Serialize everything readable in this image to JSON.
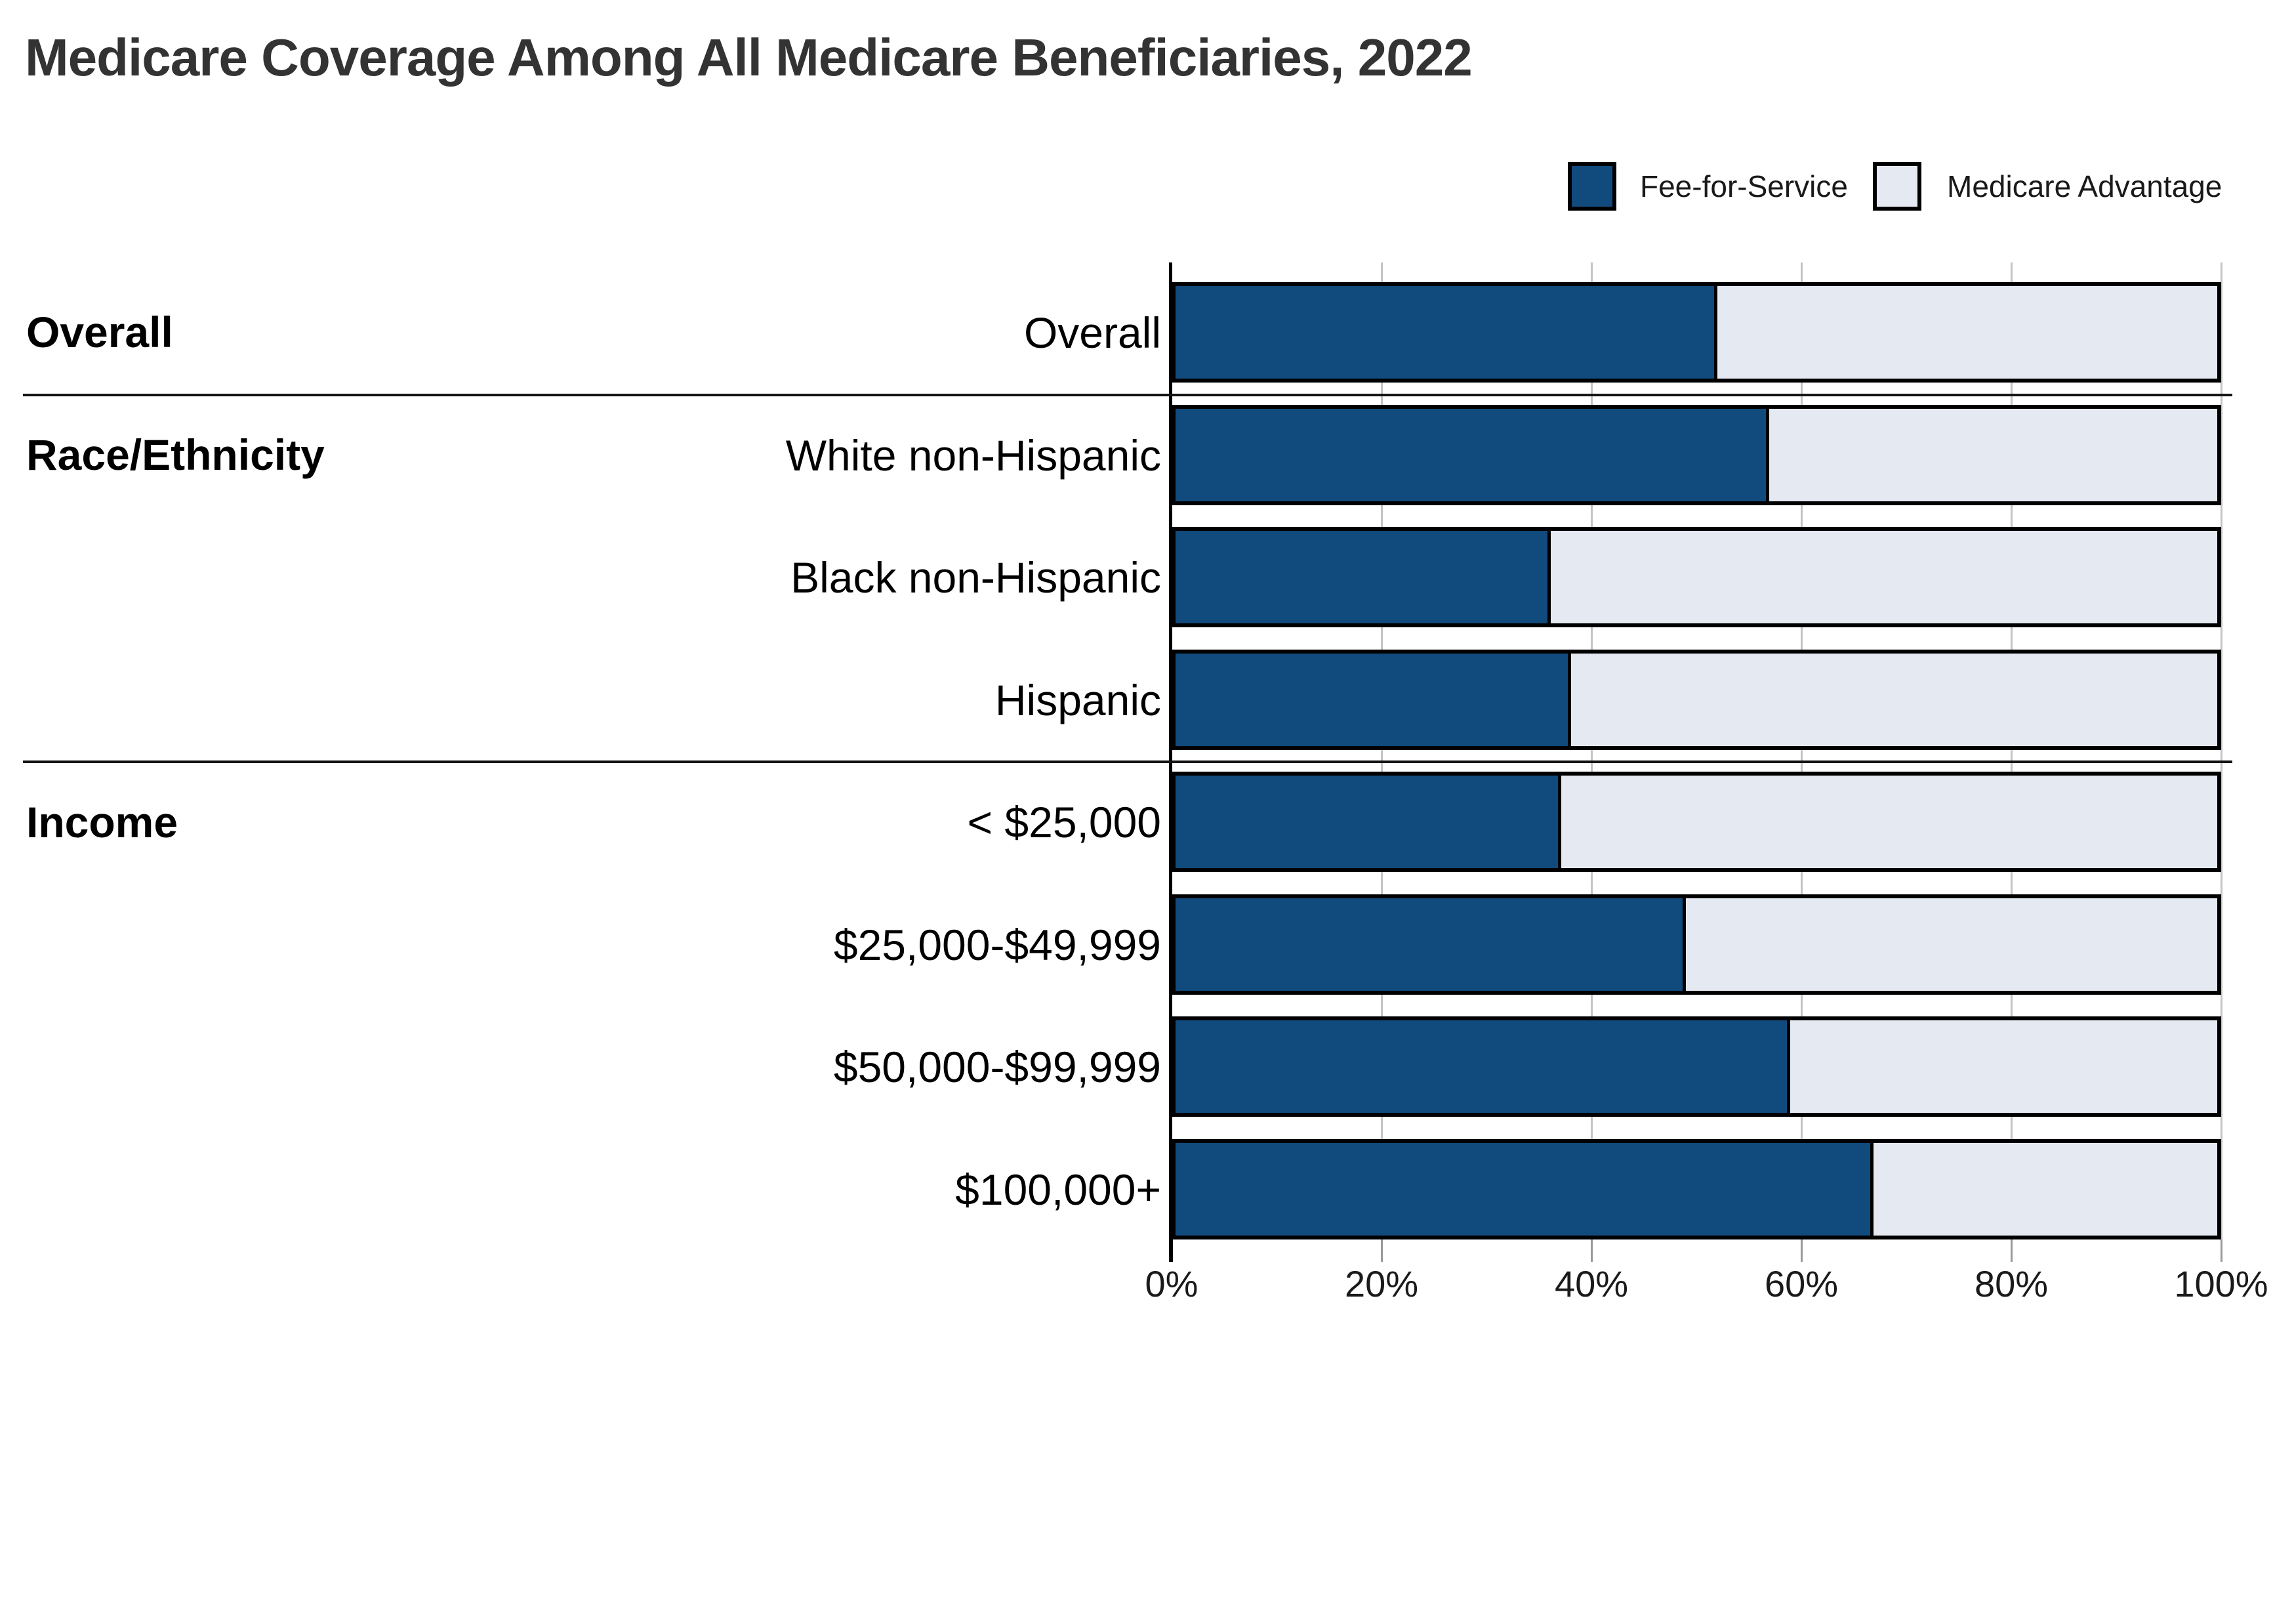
{
  "title": "Medicare Coverage Among All Medicare Beneficiaries, 2022",
  "legend": [
    {
      "label": "Fee-for-Service",
      "color": "#114A7C"
    },
    {
      "label": "Medicare Advantage",
      "color": "#E5E9F2"
    }
  ],
  "colors": {
    "fee_for_service": "#114A7C",
    "medicare_advantage": "#E5E9F2",
    "bar_border": "#000000",
    "gridline": "#C4C4C4",
    "tick": "#999999",
    "axis": "#000000",
    "divider": "#141414",
    "title_text": "#333333",
    "label_text": "#000000"
  },
  "chart_data": {
    "type": "bar",
    "stacked": true,
    "orientation": "horizontal",
    "title": "Medicare Coverage Among All Medicare Beneficiaries, 2022",
    "categories": [
      "Overall",
      "White non-Hispanic",
      "Black non-Hispanic",
      "Hispanic",
      "< $25,000",
      "$25,000-$49,999",
      "$50,000-$99,999",
      "$100,000+"
    ],
    "groups": [
      {
        "label": "Overall",
        "row_indexes": [
          0
        ]
      },
      {
        "label": "Race/Ethnicity",
        "row_indexes": [
          1,
          2,
          3
        ]
      },
      {
        "label": "Income",
        "row_indexes": [
          4,
          5,
          6,
          7
        ]
      }
    ],
    "series": [
      {
        "name": "Fee-for-Service",
        "values": [
          52,
          57,
          36,
          38,
          37,
          49,
          59,
          67
        ]
      },
      {
        "name": "Medicare Advantage",
        "values": [
          48,
          43,
          64,
          62,
          63,
          51,
          41,
          33
        ]
      }
    ],
    "x_ticks": [
      "0%",
      "20%",
      "40%",
      "60%",
      "80%",
      "100%"
    ],
    "x_tick_values": [
      0,
      20,
      40,
      60,
      80,
      100
    ],
    "xlabel": "",
    "ylabel": "",
    "xlim": [
      0,
      100
    ],
    "grid": true,
    "legend_position": "top-right"
  }
}
